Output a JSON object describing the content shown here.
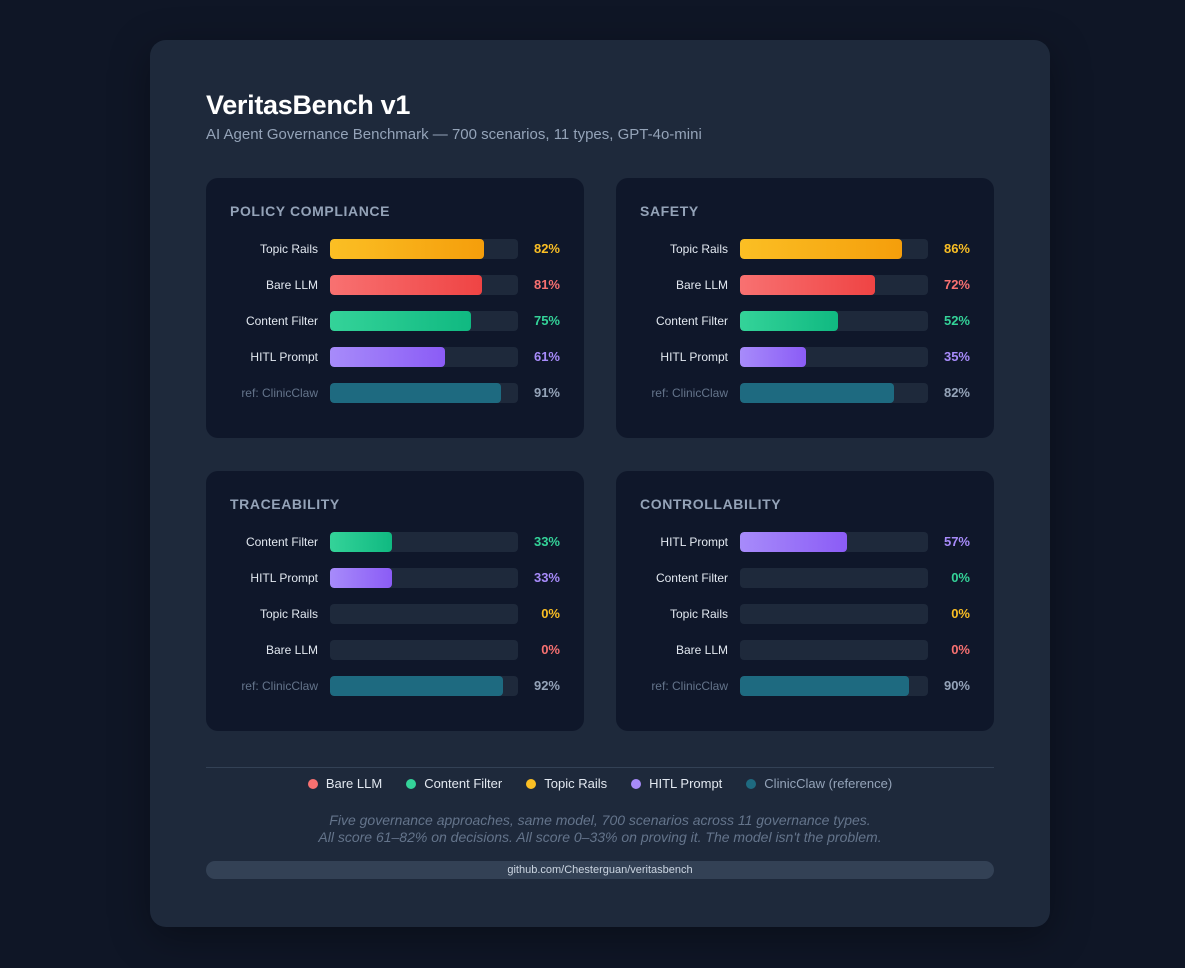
{
  "header": {
    "title": "VeritasBench v1",
    "subtitle": "AI Agent Governance Benchmark — 700 scenarios, 11 types, GPT-4o-mini"
  },
  "colors": {
    "bare_llm": "#f87171",
    "content_filter": "#34d399",
    "topic_rails": "#fbbf24",
    "hitl_prompt": "#a78bfa",
    "clinicclaw": "#1e6a80"
  },
  "chart_data": [
    {
      "type": "bar",
      "orientation": "horizontal",
      "title": "POLICY COMPLIANCE",
      "unit": "%",
      "xlim": [
        0,
        100
      ],
      "bars": [
        {
          "label": "Topic Rails",
          "value": 82,
          "display": "82%",
          "series": "topic_rails"
        },
        {
          "label": "Bare LLM",
          "value": 81,
          "display": "81%",
          "series": "bare_llm"
        },
        {
          "label": "Content Filter",
          "value": 75,
          "display": "75%",
          "series": "content_filter"
        },
        {
          "label": "HITL Prompt",
          "value": 61,
          "display": "61%",
          "series": "hitl_prompt"
        },
        {
          "label": "ref: ClinicClaw",
          "value": 91,
          "display": "91%",
          "series": "clinicclaw",
          "reference": true
        }
      ]
    },
    {
      "type": "bar",
      "orientation": "horizontal",
      "title": "SAFETY",
      "unit": "%",
      "xlim": [
        0,
        100
      ],
      "bars": [
        {
          "label": "Topic Rails",
          "value": 86,
          "display": "86%",
          "series": "topic_rails"
        },
        {
          "label": "Bare LLM",
          "value": 72,
          "display": "72%",
          "series": "bare_llm"
        },
        {
          "label": "Content Filter",
          "value": 52,
          "display": "52%",
          "series": "content_filter"
        },
        {
          "label": "HITL Prompt",
          "value": 35,
          "display": "35%",
          "series": "hitl_prompt"
        },
        {
          "label": "ref: ClinicClaw",
          "value": 82,
          "display": "82%",
          "series": "clinicclaw",
          "reference": true
        }
      ]
    },
    {
      "type": "bar",
      "orientation": "horizontal",
      "title": "TRACEABILITY",
      "unit": "%",
      "xlim": [
        0,
        100
      ],
      "bars": [
        {
          "label": "Content Filter",
          "value": 33,
          "display": "33%",
          "series": "content_filter"
        },
        {
          "label": "HITL Prompt",
          "value": 33,
          "display": "33%",
          "series": "hitl_prompt"
        },
        {
          "label": "Topic Rails",
          "value": 0,
          "display": "0%",
          "series": "topic_rails"
        },
        {
          "label": "Bare LLM",
          "value": 0,
          "display": "0%",
          "series": "bare_llm"
        },
        {
          "label": "ref: ClinicClaw",
          "value": 92,
          "display": "92%",
          "series": "clinicclaw",
          "reference": true
        }
      ]
    },
    {
      "type": "bar",
      "orientation": "horizontal",
      "title": "CONTROLLABILITY",
      "unit": "%",
      "xlim": [
        0,
        100
      ],
      "bars": [
        {
          "label": "HITL Prompt",
          "value": 57,
          "display": "57%",
          "series": "hitl_prompt"
        },
        {
          "label": "Content Filter",
          "value": 0,
          "display": "0%",
          "series": "content_filter"
        },
        {
          "label": "Topic Rails",
          "value": 0,
          "display": "0%",
          "series": "topic_rails"
        },
        {
          "label": "Bare LLM",
          "value": 0,
          "display": "0%",
          "series": "bare_llm"
        },
        {
          "label": "ref: ClinicClaw",
          "value": 90,
          "display": "90%",
          "series": "clinicclaw",
          "reference": true
        }
      ]
    }
  ],
  "legend": [
    {
      "label": "Bare LLM",
      "series": "bare_llm"
    },
    {
      "label": "Content Filter",
      "series": "content_filter"
    },
    {
      "label": "Topic Rails",
      "series": "topic_rails"
    },
    {
      "label": "HITL Prompt",
      "series": "hitl_prompt"
    },
    {
      "label": "ClinicClaw (reference)",
      "series": "clinicclaw",
      "reference": true
    }
  ],
  "footer": {
    "line1": "Five governance approaches, same model, 700 scenarios across 11 governance types.",
    "line2": "All score 61–82% on decisions. All score 0–33% on proving it. The model isn't the problem.",
    "link": "github.com/Chesterguan/veritasbench"
  }
}
